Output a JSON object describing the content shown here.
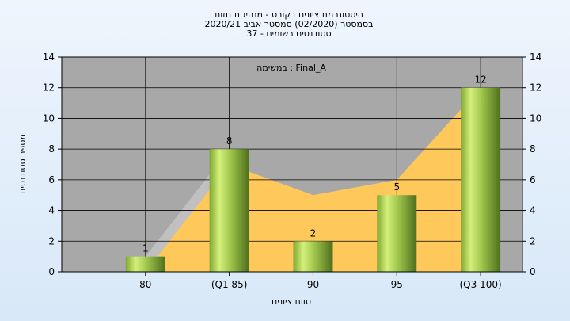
{
  "chart_data": {
    "type": "bar",
    "title_lines": [
      "היסטוגרמת ציונים בקורס - מנהיגות חזות",
      "בסמסטר  (02/2020)  סמסטר אביב 2020/21",
      "סטודנטים רשומים - 37"
    ],
    "annotation": "במשימה : Final_A",
    "xlabel": "טווח ציונים",
    "ylabel": "מספר סטודנטים",
    "categories": [
      "80",
      "(Q1 85)",
      "90",
      "95",
      "(Q3 100)"
    ],
    "values": [
      1,
      8,
      2,
      5,
      12
    ],
    "ylim": [
      0,
      14
    ],
    "yticks": [
      0,
      2,
      4,
      6,
      8,
      10,
      12,
      14
    ],
    "grid": true,
    "background_series": [
      {
        "type": "area",
        "color": "#c0c0c0",
        "values": [
          1,
          8,
          2,
          5,
          12
        ]
      },
      {
        "type": "area",
        "color": "#ffc85a",
        "values": [
          0,
          7,
          5,
          6,
          12
        ]
      }
    ],
    "bar_color": "#9cc24a",
    "plot_bg": "#a8a8a8"
  }
}
